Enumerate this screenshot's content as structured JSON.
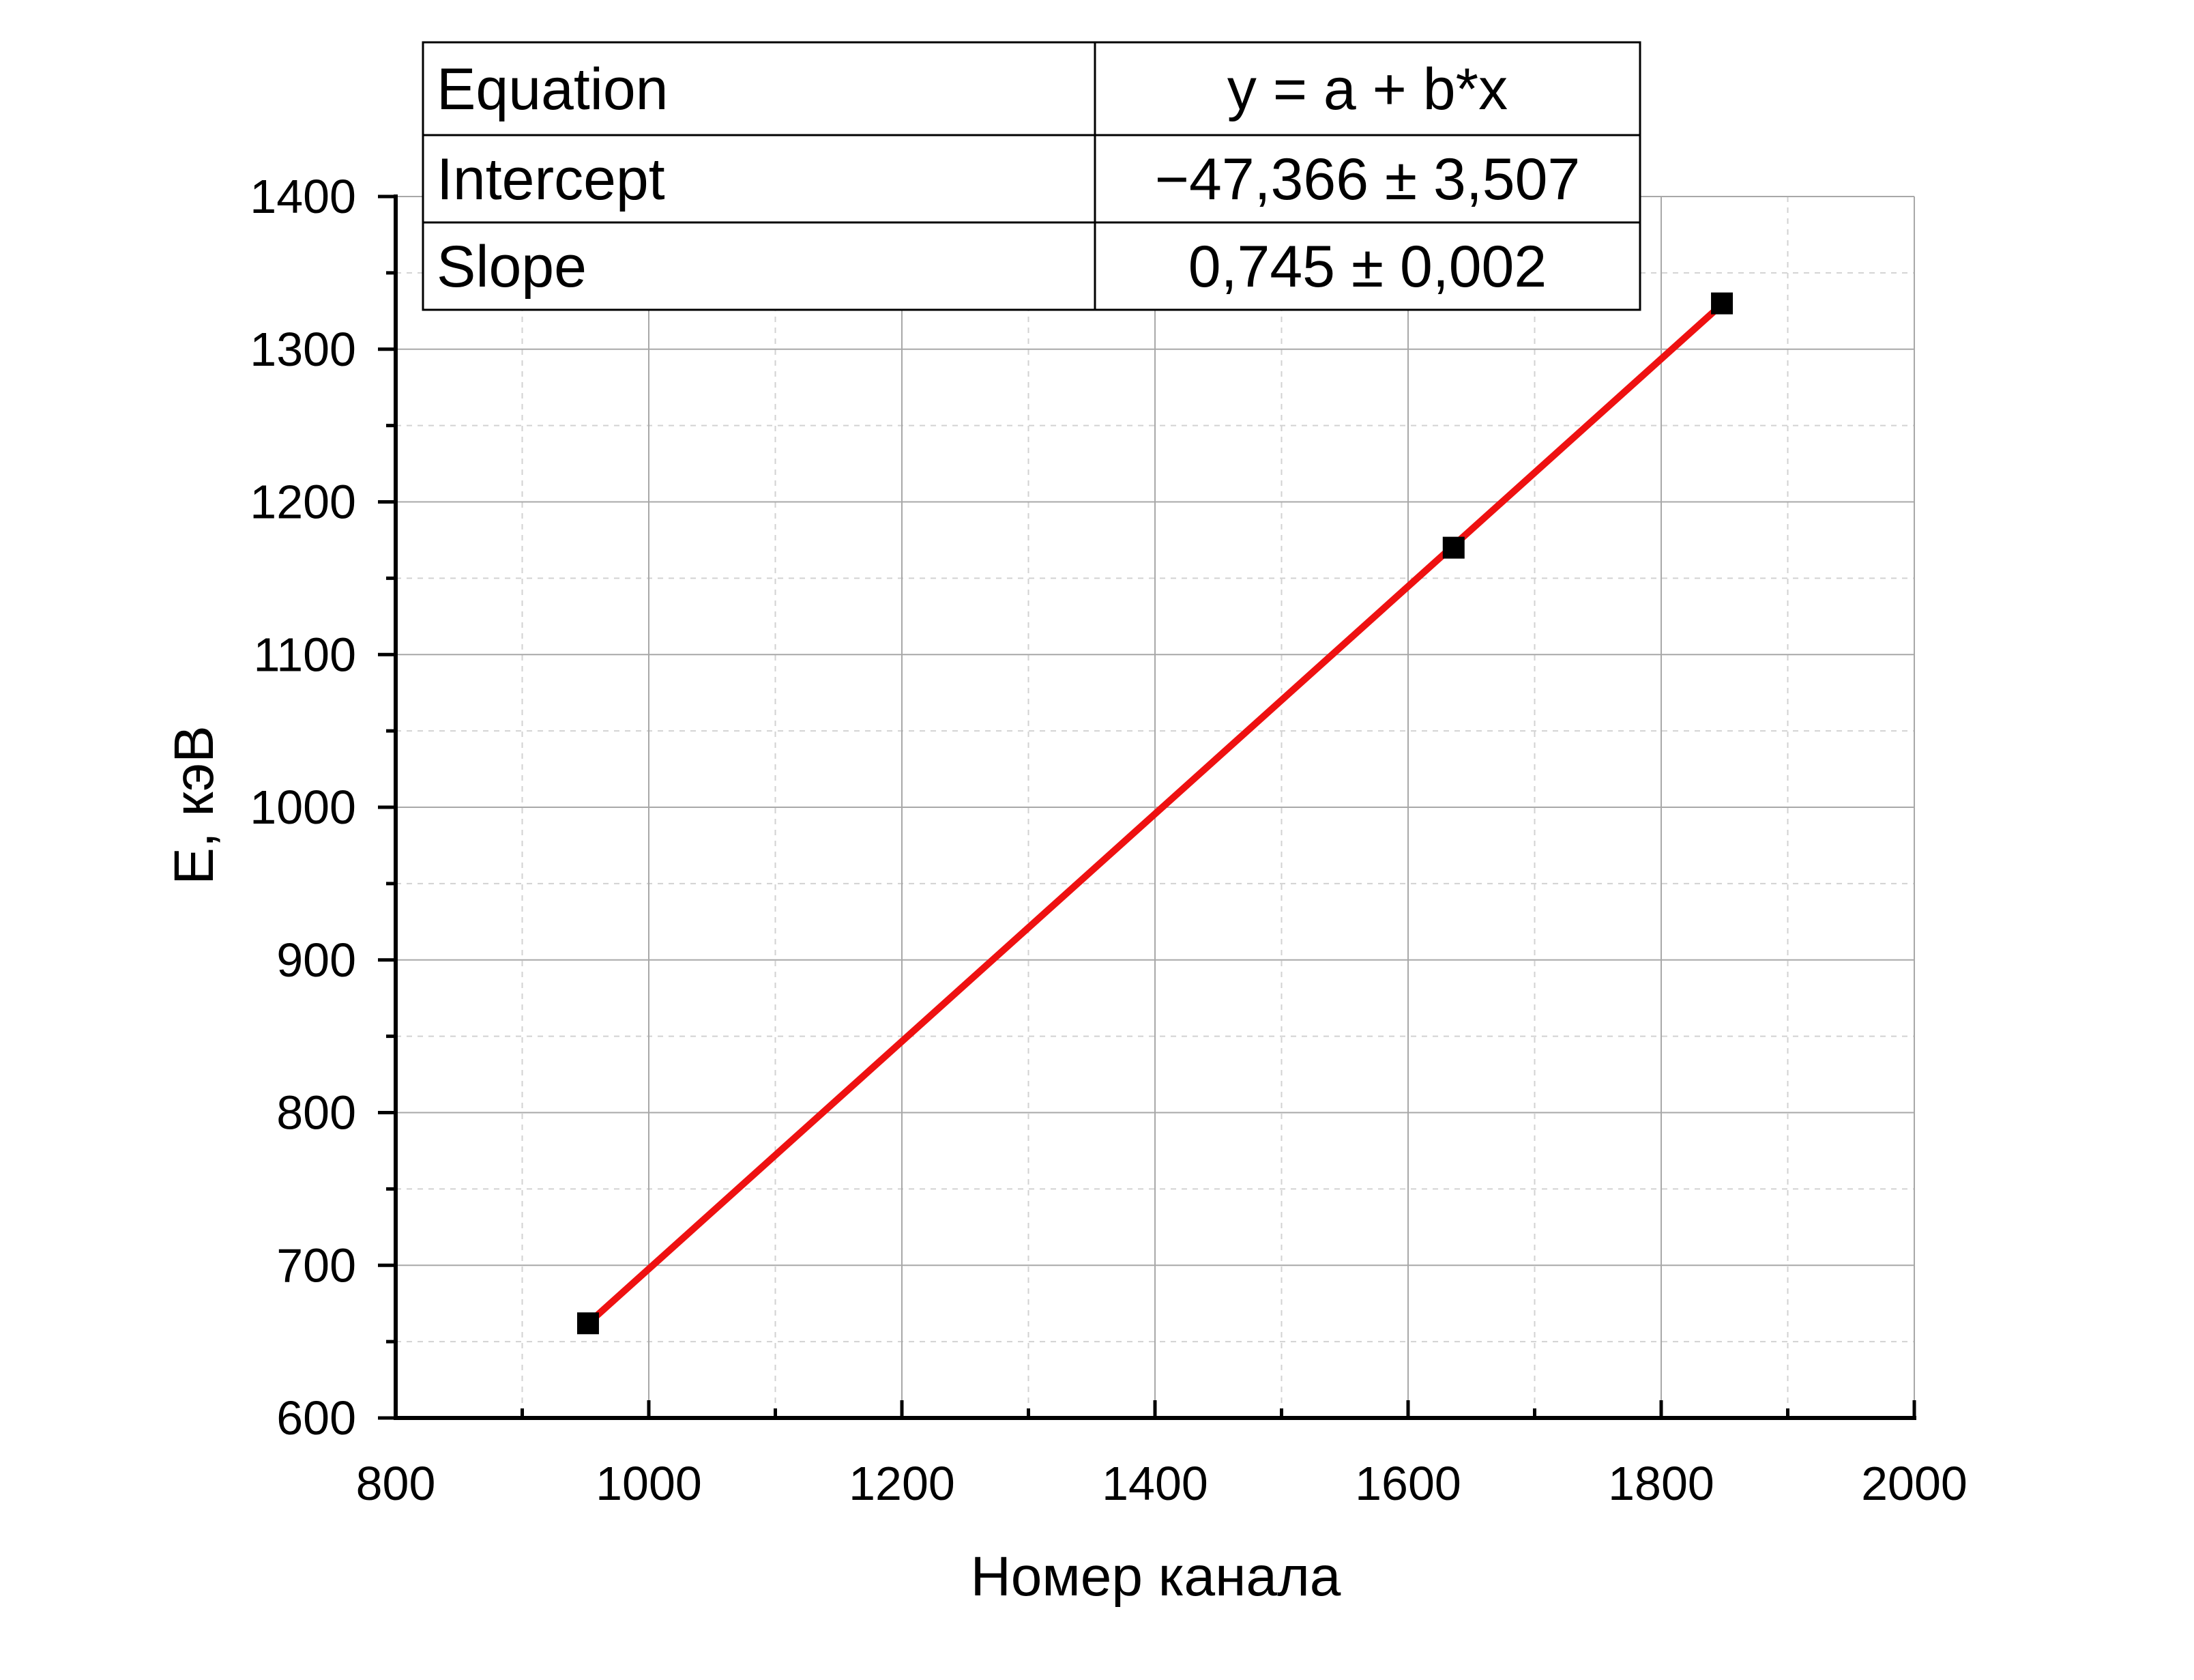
{
  "chart_data": {
    "type": "scatter",
    "xlabel": "Номер канала",
    "ylabel": "E, кэВ",
    "xlim": [
      800,
      2000
    ],
    "ylim": [
      600,
      1400
    ],
    "x_ticks": [
      "800",
      "1000",
      "1200",
      "1400",
      "1600",
      "1800",
      "2000"
    ],
    "y_ticks": [
      "600",
      "700",
      "800",
      "900",
      "1000",
      "1100",
      "1200",
      "1300",
      "1400"
    ],
    "grid": true,
    "series": [
      {
        "marker": "square",
        "color": "#000000",
        "points": [
          {
            "x": 952,
            "y": 662
          },
          {
            "x": 1636,
            "y": 1170
          },
          {
            "x": 1848,
            "y": 1330
          }
        ]
      }
    ],
    "fit": {
      "type": "linear",
      "color": "#ee1111",
      "intercept": -47.366,
      "slope": 0.745,
      "x_range": [
        952,
        1848
      ]
    },
    "fit_table": {
      "rows": [
        {
          "label": "Equation",
          "value": "y = a + b*x"
        },
        {
          "label": "Intercept",
          "value": "−47,366 ± 3,507"
        },
        {
          "label": "Slope",
          "value": "0,745 ± 0,002"
        }
      ]
    }
  }
}
